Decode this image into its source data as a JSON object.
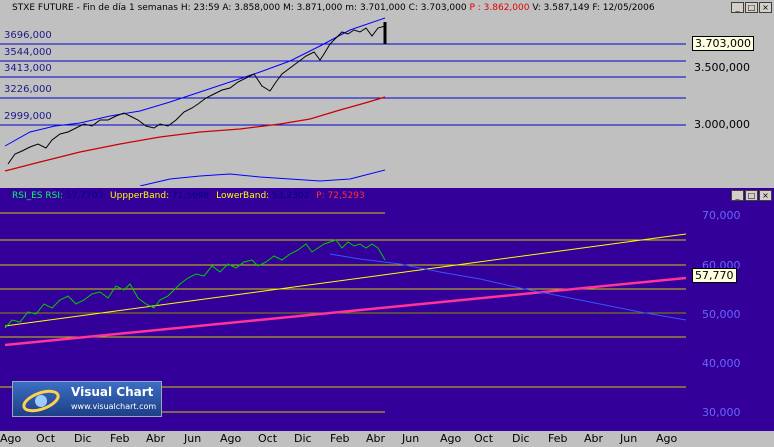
{
  "price_pane": {
    "title_name": "STXE FUTURE",
    "period": "Fin de día 1 semanas",
    "h": "H: 23:59",
    "a": "A: 3.858,000",
    "m": "M: 3.871,000",
    "mm": "m: 3.701,000",
    "c": "C: 3.703,000",
    "p": "P : 3.862,000",
    "v": "V: 3.587,149",
    "f": "F: 12/05/2006",
    "h_lines": [
      "3696,000",
      "3544,000",
      "3413,000",
      "3226,000",
      "2999,000"
    ],
    "y_ticks": [
      "3.500,000",
      "3.000,000"
    ],
    "current_value": "3.703,000"
  },
  "rsi_pane": {
    "rsi_label": "RSI_ES RSI:",
    "rsi_val": "57,7703",
    "upper_label": "UppperBand:",
    "upper_val": "71,5698",
    "lower_label": "LowerBand:",
    "lower_val": "53,2302",
    "p_label": "P: 72,5293",
    "y_ticks": [
      "70,000",
      "60,000",
      "50,000",
      "40,000",
      "30,000"
    ],
    "current_value": "57,770"
  },
  "window_buttons": {
    "minimize": "_",
    "maximize": "□",
    "close": "×"
  },
  "x_axis": [
    "Ago",
    "Oct",
    "Dic",
    "Feb",
    "Abr",
    "Jun",
    "Ago",
    "Oct",
    "Dic",
    "Feb",
    "Abr",
    "Jun",
    "Ago",
    "Oct",
    "Dic",
    "Feb",
    "Abr",
    "Jun",
    "Ago"
  ],
  "logo": {
    "title": "Visual Chart",
    "url": "www.visualchart.com"
  },
  "colors": {
    "price_bg": "#000080",
    "rsi_bg": "#330099",
    "line_red": "#cc0000",
    "line_blue": "#0000ff",
    "rsi_green": "#00cc00",
    "upper_yellow": "#ffff00",
    "lower_pink": "#ff3399"
  }
}
